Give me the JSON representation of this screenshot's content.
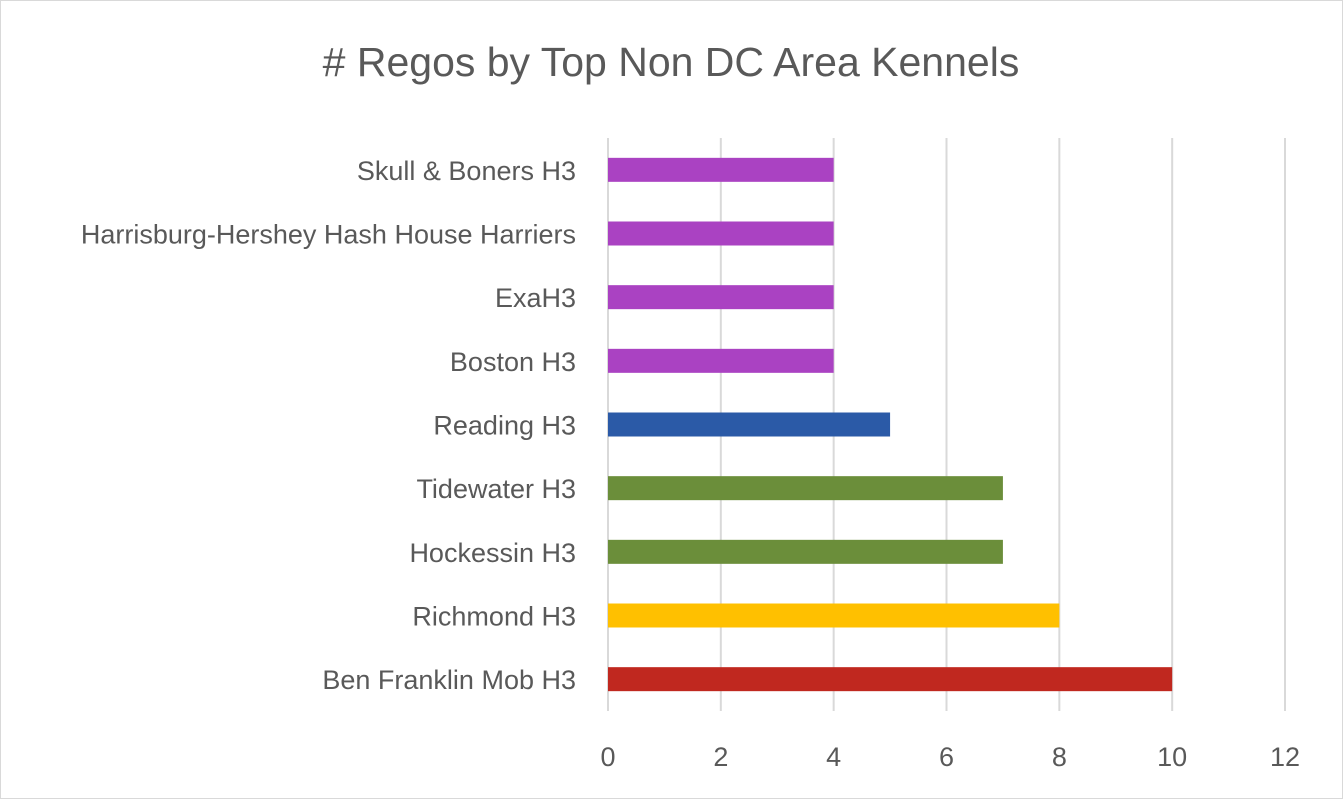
{
  "chart_data": {
    "type": "bar",
    "orientation": "horizontal",
    "title": "# Regos by Top Non DC Area Kennels",
    "xlabel": "",
    "ylabel": "",
    "categories": [
      "Ben Franklin Mob H3",
      "Richmond H3",
      "Hockessin H3",
      "Tidewater H3",
      "Reading H3",
      "Boston H3",
      "ExaH3",
      "Harrisburg-Hershey Hash House Harriers",
      "Skull & Boners H3"
    ],
    "values": [
      10,
      8,
      7,
      7,
      5,
      4,
      4,
      4,
      4
    ],
    "bar_colors": [
      "#c0281f",
      "#ffc000",
      "#6b8e3a",
      "#6b8e3a",
      "#2b5aa7",
      "#aa42c2",
      "#aa42c2",
      "#aa42c2",
      "#aa42c2"
    ],
    "xlim": [
      0,
      12
    ],
    "x_ticks": [
      0,
      2,
      4,
      6,
      8,
      10,
      12
    ],
    "tick_labels": [
      "0",
      "2",
      "4",
      "6",
      "8",
      "10",
      "12"
    ],
    "grid": true,
    "legend": "none"
  }
}
